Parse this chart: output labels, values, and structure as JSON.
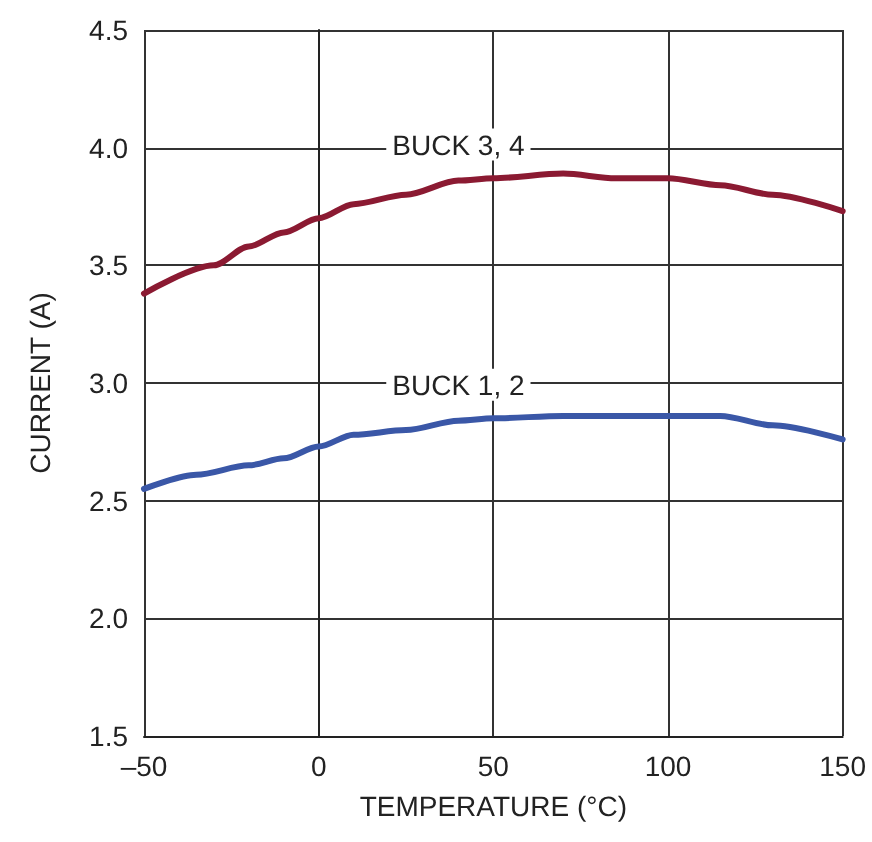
{
  "chart_data": {
    "type": "line",
    "xlabel": "TEMPERATURE (°C)",
    "ylabel": "CURRENT (A)",
    "xlim": [
      -50,
      150
    ],
    "xticks": [
      {
        "value": -50,
        "label": "–50"
      },
      0,
      50,
      100,
      150
    ],
    "ylim": [
      1.5,
      4.5
    ],
    "yticks": [
      1.5,
      {
        "value": 2,
        "label": "2.0"
      },
      2.5,
      {
        "value": 3,
        "label": "3.0"
      },
      3.5,
      {
        "value": 4,
        "label": "4.0"
      },
      4.5
    ],
    "grid": true,
    "legend": false,
    "marker": "none",
    "line_style": "solid",
    "series": [
      {
        "name": "BUCK 3, 4",
        "color": "#8b1a32",
        "x": [
          -50,
          -30,
          -20,
          -10,
          0,
          10,
          25,
          40,
          50,
          70,
          85,
          100,
          115,
          130,
          150
        ],
        "values": [
          3.38,
          3.5,
          3.58,
          3.64,
          3.7,
          3.76,
          3.8,
          3.86,
          3.87,
          3.89,
          3.87,
          3.87,
          3.84,
          3.8,
          3.73
        ]
      },
      {
        "name": "BUCK 1, 2",
        "color": "#3a57a7",
        "x": [
          -50,
          -35,
          -20,
          -10,
          0,
          10,
          25,
          40,
          50,
          70,
          100,
          115,
          130,
          150
        ],
        "values": [
          2.55,
          2.61,
          2.65,
          2.68,
          2.73,
          2.78,
          2.8,
          2.84,
          2.85,
          2.86,
          2.86,
          2.86,
          2.82,
          2.76
        ]
      }
    ]
  }
}
